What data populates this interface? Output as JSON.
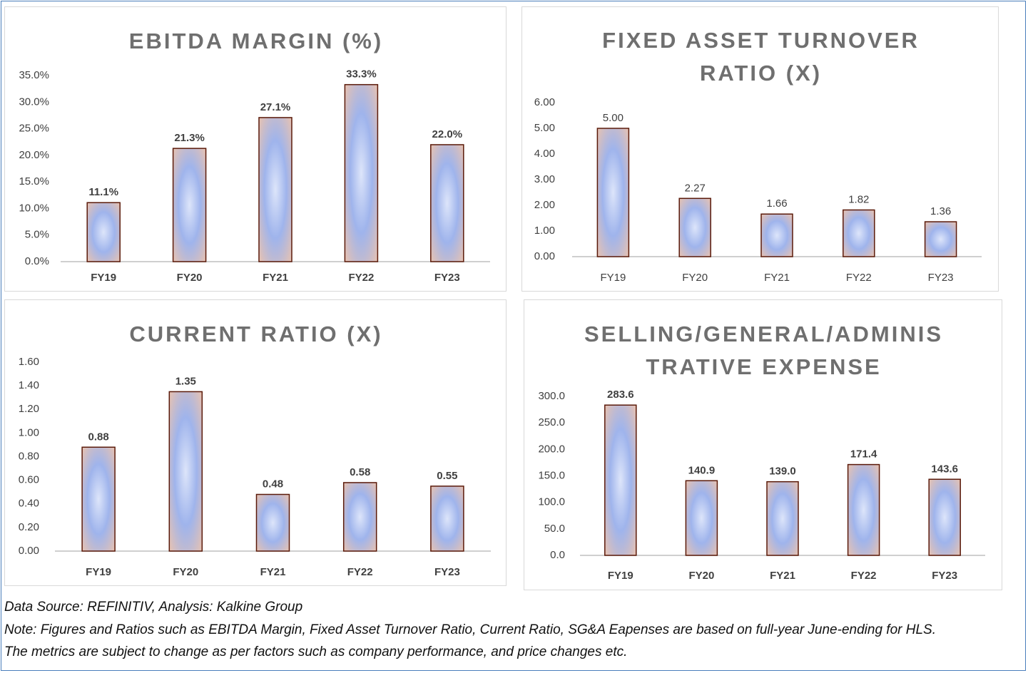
{
  "colors": {
    "frame": "#4a7ebb",
    "bar_center": "#9fb4ec",
    "bar_edge": "#f2c4a8",
    "bar_stroke": "#5a1a0a",
    "title": "#6f6f6f",
    "axis_text": "#404040"
  },
  "chart_data": [
    {
      "type": "bar",
      "title_lines": [
        "EBITDA MARGIN (%)"
      ],
      "categories": [
        "FY19",
        "FY20",
        "FY21",
        "FY22",
        "FY23"
      ],
      "values": [
        11.1,
        21.3,
        27.1,
        33.3,
        22.0
      ],
      "data_labels": [
        "11.1%",
        "21.3%",
        "27.1%",
        "33.3%",
        "22.0%"
      ],
      "yticks": [
        "0.0%",
        "5.0%",
        "10.0%",
        "15.0%",
        "20.0%",
        "25.0%",
        "30.0%",
        "35.0%"
      ],
      "ylim": [
        0,
        35
      ],
      "grid": false
    },
    {
      "type": "bar",
      "title_lines": [
        "FIXED ASSET TURNOVER",
        "RATIO (X)"
      ],
      "categories": [
        "FY19",
        "FY20",
        "FY21",
        "FY22",
        "FY23"
      ],
      "values": [
        5.0,
        2.27,
        1.66,
        1.82,
        1.36
      ],
      "data_labels": [
        "5.00",
        "2.27",
        "1.66",
        "1.82",
        "1.36"
      ],
      "yticks": [
        "0.00",
        "1.00",
        "2.00",
        "3.00",
        "4.00",
        "5.00",
        "6.00"
      ],
      "ylim": [
        0,
        6
      ],
      "grid": false
    },
    {
      "type": "bar",
      "title_lines": [
        "CURRENT RATIO (X)"
      ],
      "categories": [
        "FY19",
        "FY20",
        "FY21",
        "FY22",
        "FY23"
      ],
      "values": [
        0.88,
        1.35,
        0.48,
        0.58,
        0.55
      ],
      "data_labels": [
        "0.88",
        "1.35",
        "0.48",
        "0.58",
        "0.55"
      ],
      "yticks": [
        "0.00",
        "0.20",
        "0.40",
        "0.60",
        "0.80",
        "1.00",
        "1.20",
        "1.40",
        "1.60"
      ],
      "ylim": [
        0,
        1.6
      ],
      "grid": false
    },
    {
      "type": "bar",
      "title_lines": [
        "SELLING/GENERAL/ADMINIS",
        "TRATIVE EXPENSE"
      ],
      "categories": [
        "FY19",
        "FY20",
        "FY21",
        "FY22",
        "FY23"
      ],
      "values": [
        283.6,
        140.9,
        139.0,
        171.4,
        143.6
      ],
      "data_labels": [
        "283.6",
        "140.9",
        "139.0",
        "171.4",
        "143.6"
      ],
      "yticks": [
        "0.0",
        "50.0",
        "100.0",
        "150.0",
        "200.0",
        "250.0",
        "300.0"
      ],
      "ylim": [
        0,
        300
      ],
      "grid": false
    }
  ],
  "footer": {
    "source": "Data Source: REFINITIV, Analysis: Kalkine Group",
    "note_line1": "Note: Figures and Ratios such as EBITDA Margin, Fixed Asset Turnover Ratio, Current Ratio, SG&A Eapenses are based on full-year June-ending for HLS.",
    "note_line2": "The metrics are subject to change as per factors such as company performance, and price changes etc."
  }
}
